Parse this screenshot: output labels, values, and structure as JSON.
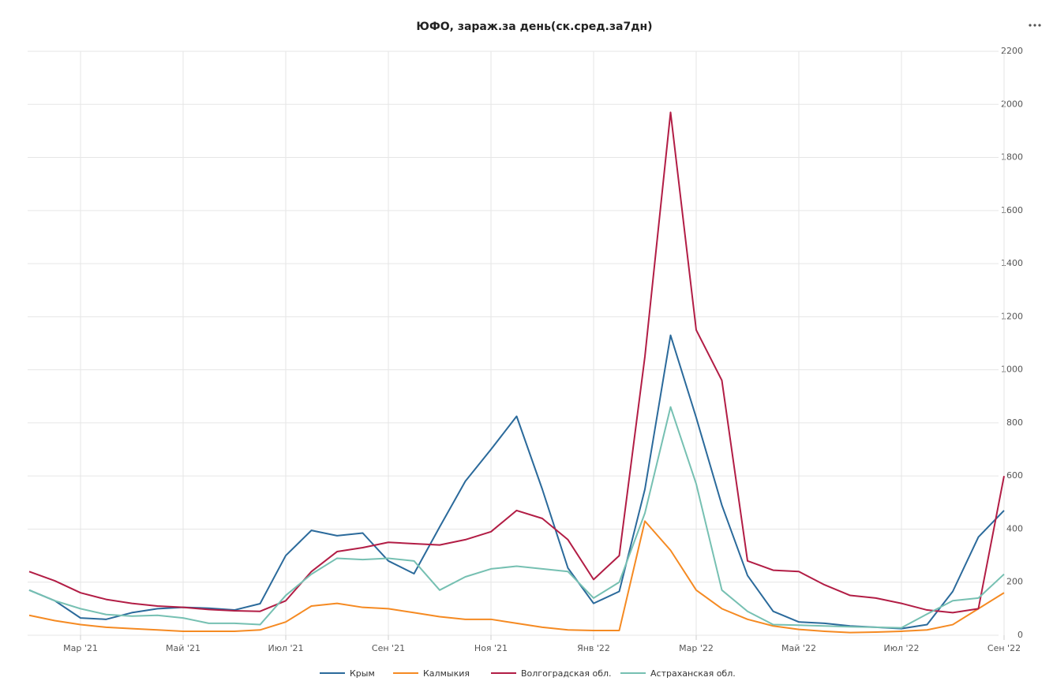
{
  "chart_data": {
    "type": "line",
    "title": "ЮФО, зараж.за день(ск.сред.за7дн)",
    "categories": [
      null,
      null,
      "Мар '21",
      null,
      null,
      null,
      "Май '21",
      null,
      null,
      null,
      "Июл '21",
      null,
      null,
      null,
      "Сен '21",
      null,
      null,
      null,
      "Ноя '21",
      null,
      null,
      null,
      "Янв '22",
      null,
      null,
      null,
      "Мар '22",
      null,
      null,
      null,
      "Май '22",
      null,
      null,
      null,
      "Июл '22",
      null,
      null,
      null,
      "Сен '22"
    ],
    "series": [
      {
        "name": "Крым",
        "color": "#2b6a9b",
        "values": [
          170,
          130,
          65,
          60,
          85,
          100,
          105,
          102,
          95,
          119,
          300,
          395,
          375,
          385,
          280,
          232,
          408,
          580,
          700,
          825,
          550,
          253,
          120,
          165,
          550,
          1130,
          820,
          490,
          225,
          90,
          50,
          45,
          35,
          30,
          25,
          40,
          165,
          370,
          470
        ]
      },
      {
        "name": "Калмыкия",
        "color": "#f58a22",
        "values": [
          75,
          55,
          40,
          30,
          25,
          20,
          15,
          15,
          15,
          20,
          50,
          110,
          120,
          105,
          100,
          85,
          70,
          60,
          60,
          45,
          30,
          20,
          18,
          18,
          430,
          320,
          170,
          100,
          60,
          35,
          22,
          15,
          10,
          12,
          15,
          20,
          40,
          100,
          160
        ]
      },
      {
        "name": "Волгоградская обл.",
        "color": "#b21d45",
        "values": [
          240,
          205,
          160,
          135,
          120,
          110,
          105,
          97,
          92,
          90,
          130,
          240,
          315,
          330,
          350,
          345,
          340,
          360,
          390,
          470,
          440,
          360,
          210,
          300,
          1050,
          1970,
          1150,
          960,
          280,
          245,
          240,
          190,
          150,
          140,
          120,
          95,
          85,
          100,
          600
        ]
      },
      {
        "name": "Астраханская обл.",
        "color": "#76c0b2",
        "values": [
          170,
          130,
          100,
          78,
          72,
          75,
          65,
          45,
          45,
          40,
          150,
          230,
          290,
          285,
          290,
          280,
          170,
          220,
          250,
          260,
          250,
          240,
          140,
          200,
          460,
          860,
          570,
          170,
          90,
          40,
          38,
          35,
          32,
          30,
          28,
          80,
          130,
          140,
          230
        ]
      }
    ],
    "ylim": [
      0,
      2200
    ],
    "yticks": [
      0,
      200,
      400,
      600,
      800,
      1000,
      1200,
      1400,
      1600,
      1800,
      2000,
      2200
    ],
    "grid": true
  }
}
